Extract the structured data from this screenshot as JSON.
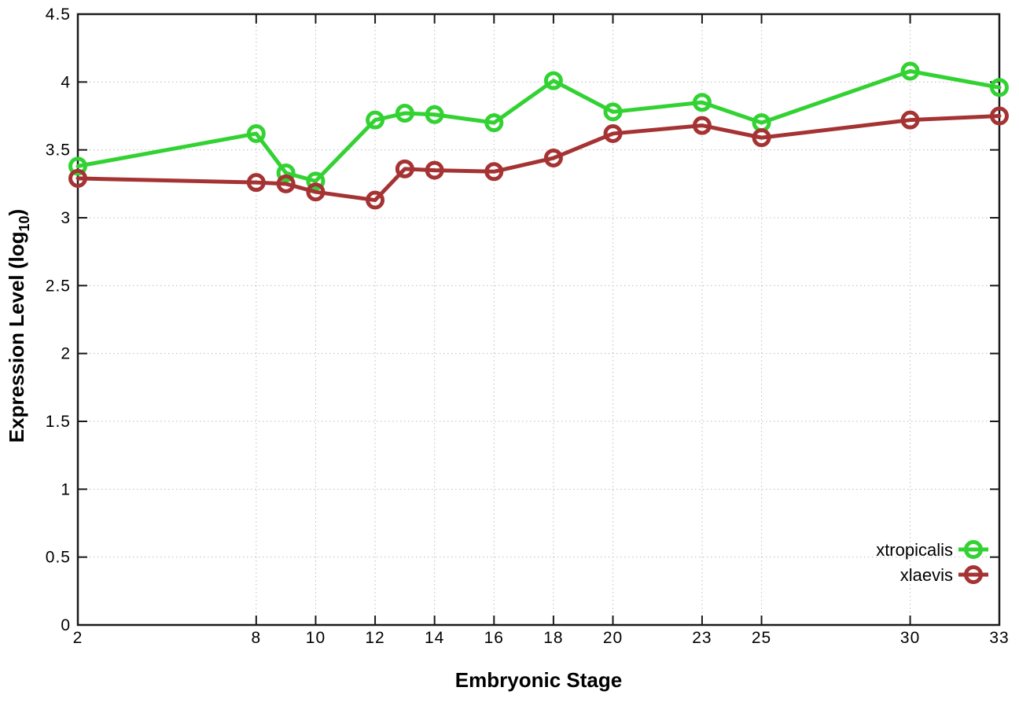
{
  "page": {
    "background": "#ffffff"
  },
  "chart_data": {
    "type": "line",
    "title": "",
    "xlabel": "Embryonic Stage",
    "ylabel": {
      "text": "Expression Level (log",
      "sub": "10",
      "close": ")"
    },
    "x": [
      2,
      8,
      9,
      10,
      12,
      13,
      14,
      16,
      18,
      20,
      23,
      25,
      30,
      33
    ],
    "xticks": [
      2,
      8,
      10,
      12,
      14,
      16,
      18,
      20,
      23,
      25,
      30,
      33
    ],
    "yticks": [
      0,
      0.5,
      1,
      1.5,
      2,
      2.5,
      3,
      3.5,
      4,
      4.5
    ],
    "xlim": [
      2,
      33
    ],
    "ylim": [
      0,
      4.5
    ],
    "grid": true,
    "legend_position": "bottom-right",
    "series": [
      {
        "name": "xtropicalis",
        "color": "#32d232",
        "values": [
          3.38,
          3.62,
          3.33,
          3.27,
          3.72,
          3.77,
          3.76,
          3.7,
          4.01,
          3.78,
          3.85,
          3.7,
          4.08,
          3.96
        ]
      },
      {
        "name": "xlaevis",
        "color": "#a53333",
        "values": [
          3.29,
          3.26,
          3.25,
          3.19,
          3.13,
          3.36,
          3.35,
          3.34,
          3.44,
          3.62,
          3.68,
          3.59,
          3.72,
          3.75
        ]
      }
    ],
    "style": {
      "axis_color": "#1a1a1a",
      "grid_color": "#bdbdbd",
      "marker": "open-circle"
    }
  }
}
